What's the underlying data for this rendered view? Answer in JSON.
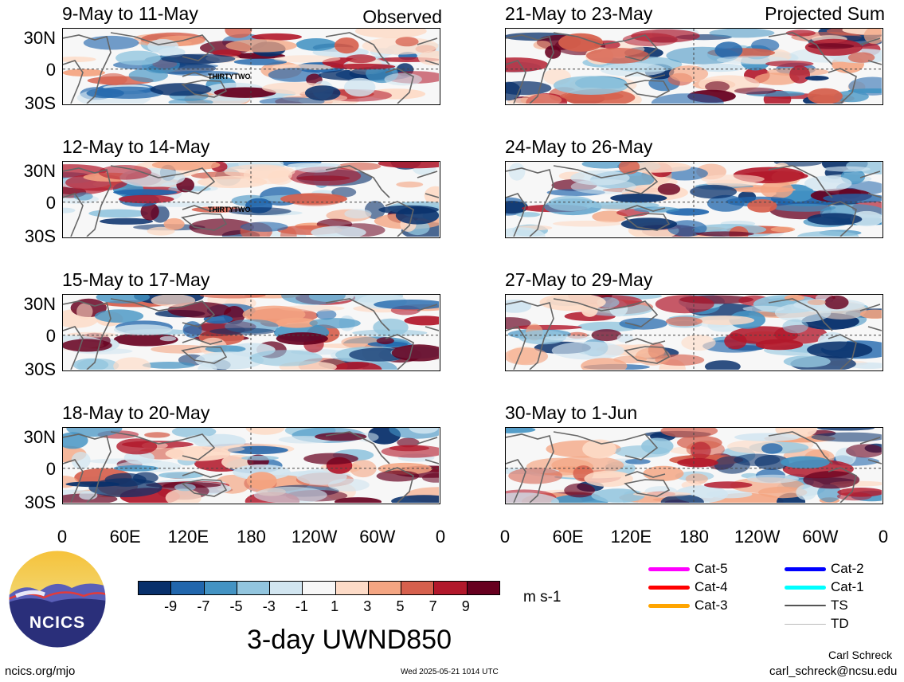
{
  "left_header": "Observed",
  "right_header": "Projected Sum",
  "panels_left": [
    {
      "title": "9-May to 11-May",
      "storm": "THIRTYTWO"
    },
    {
      "title": "12-May to 14-May",
      "storm": "THIRTYTWO"
    },
    {
      "title": "15-May to 17-May"
    },
    {
      "title": "18-May to 20-May"
    }
  ],
  "panels_right": [
    {
      "title": "21-May to 23-May"
    },
    {
      "title": "24-May to 26-May"
    },
    {
      "title": "27-May to 29-May"
    },
    {
      "title": "30-May to 1-Jun"
    }
  ],
  "lat_labels": [
    "30N",
    "0",
    "30S"
  ],
  "lon_labels": [
    "0",
    "60E",
    "120E",
    "180",
    "120W",
    "60W",
    "0"
  ],
  "colorbar": {
    "labels": [
      "-9",
      "-7",
      "-5",
      "-3",
      "-1",
      "1",
      "3",
      "5",
      "7",
      "9"
    ],
    "colors": [
      "#08306b",
      "#2166ac",
      "#4393c3",
      "#92c5de",
      "#d1e5f0",
      "#f7f7f7",
      "#fddbc7",
      "#f4a582",
      "#d6604d",
      "#b2182b",
      "#67001f"
    ],
    "units": "m s-1"
  },
  "legend": [
    {
      "label": "Cat-5",
      "color": "#ff00ff"
    },
    {
      "label": "Cat-4",
      "color": "#ff0000"
    },
    {
      "label": "Cat-3",
      "color": "#ffa500"
    },
    {
      "label": "Cat-2",
      "color": "#0000ff"
    },
    {
      "label": "Cat-1",
      "color": "#00ffff"
    },
    {
      "label": "TS",
      "color": "#555555"
    },
    {
      "label": "TD",
      "color": "#bbbbbb"
    }
  ],
  "logo_text": "NCICS",
  "main_title": "3-day UWND850",
  "footer_left": "ncics.org/mjo",
  "footer_date": "Wed 2025-05-21 1014 UTC",
  "author": "Carl Schreck",
  "email": "carl_schreck@ncsu.edu"
}
